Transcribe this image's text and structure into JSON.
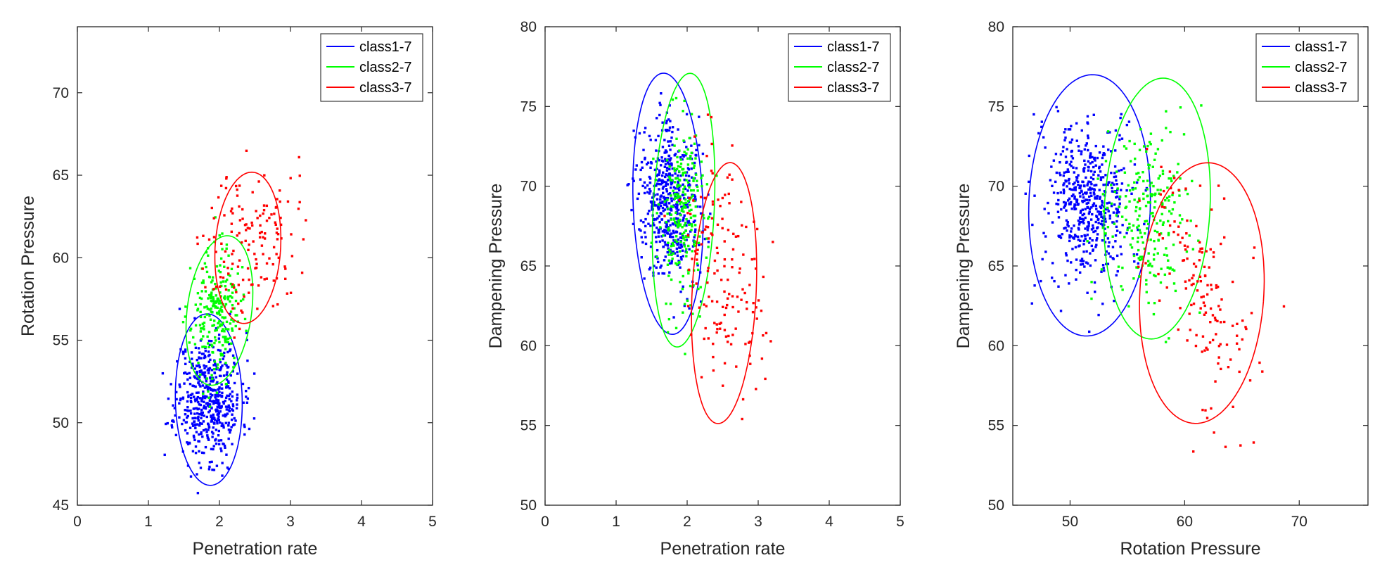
{
  "colors": {
    "class1": "#0000ff",
    "class2": "#00ff00",
    "class3": "#ff0000",
    "axis": "#262626"
  },
  "chart_data": [
    {
      "type": "scatter",
      "xlabel": "Penetration rate",
      "ylabel": "Rotation Pressure",
      "xlim": [
        0,
        5
      ],
      "ylim": [
        45,
        74
      ],
      "xticks": [
        0,
        1,
        2,
        3,
        4,
        5
      ],
      "yticks": [
        45,
        50,
        55,
        60,
        65,
        70
      ],
      "legend_position": "top-right",
      "series": [
        {
          "name": "class1-7",
          "color": "class1",
          "center": [
            1.85,
            51.5
          ],
          "spread": [
            0.23,
            1.9
          ],
          "slope": 0.3,
          "count": 520,
          "seed": 11,
          "ellipse": {
            "cx": 1.85,
            "cy": 51.4,
            "rx": 0.47,
            "ry": 5.2,
            "rotation_deg": 2
          }
        },
        {
          "name": "class2-7",
          "color": "class2",
          "center": [
            1.95,
            56.6
          ],
          "spread": [
            0.17,
            1.9
          ],
          "slope": 0.0,
          "count": 240,
          "seed": 23,
          "ellipse": {
            "cx": 2.0,
            "cy": 56.8,
            "rx": 0.45,
            "ry": 4.6,
            "rotation_deg": -12
          }
        },
        {
          "name": "class3-7",
          "color": "class3",
          "center": [
            2.45,
            61.0
          ],
          "spread": [
            0.32,
            2.3
          ],
          "slope": 1.5,
          "count": 150,
          "seed": 37,
          "ellipse": {
            "cx": 2.4,
            "cy": 60.6,
            "rx": 0.46,
            "ry": 4.6,
            "rotation_deg": -6
          }
        }
      ]
    },
    {
      "type": "scatter",
      "xlabel": "Penetration rate",
      "ylabel": "Dampening Pressure",
      "xlim": [
        0,
        5
      ],
      "ylim": [
        50,
        80
      ],
      "xticks": [
        0,
        1,
        2,
        3,
        4,
        5
      ],
      "yticks": [
        50,
        55,
        60,
        65,
        70,
        75,
        80
      ],
      "legend_position": "top-right",
      "series": [
        {
          "name": "class1-7",
          "color": "class1",
          "center": [
            1.75,
            69.0
          ],
          "spread": [
            0.22,
            2.5
          ],
          "slope": -1.0,
          "count": 520,
          "seed": 41,
          "ellipse": {
            "cx": 1.73,
            "cy": 68.9,
            "rx": 0.49,
            "ry": 8.2,
            "rotation_deg": 3
          }
        },
        {
          "name": "class2-7",
          "color": "class2",
          "center": [
            1.95,
            68.0
          ],
          "spread": [
            0.17,
            3.0
          ],
          "slope": 0.0,
          "count": 240,
          "seed": 53,
          "ellipse": {
            "cx": 1.95,
            "cy": 68.5,
            "rx": 0.43,
            "ry": 8.6,
            "rotation_deg": -4
          }
        },
        {
          "name": "class3-7",
          "color": "class3",
          "center": [
            2.5,
            64.0
          ],
          "spread": [
            0.28,
            3.6
          ],
          "slope": -4.5,
          "count": 150,
          "seed": 67,
          "ellipse": {
            "cx": 2.52,
            "cy": 63.3,
            "rx": 0.45,
            "ry": 8.2,
            "rotation_deg": -4
          }
        }
      ]
    },
    {
      "type": "scatter",
      "xlabel": "Rotation Pressure",
      "ylabel": "Dampening Pressure",
      "xlim": [
        45,
        76
      ],
      "ylim": [
        50,
        80
      ],
      "xticks": [
        50,
        60,
        70
      ],
      "yticks": [
        50,
        55,
        60,
        65,
        70,
        75,
        80
      ],
      "legend_position": "top-right",
      "series": [
        {
          "name": "class1-7",
          "color": "class1",
          "center": [
            51.5,
            68.8
          ],
          "spread": [
            1.9,
            2.5
          ],
          "slope": -0.1,
          "count": 520,
          "seed": 71,
          "ellipse": {
            "cx": 51.7,
            "cy": 68.8,
            "rx": 5.3,
            "ry": 8.2,
            "rotation_deg": -3
          }
        },
        {
          "name": "class2-7",
          "color": "class2",
          "center": [
            56.8,
            68.0
          ],
          "spread": [
            1.9,
            2.8
          ],
          "slope": 0.0,
          "count": 240,
          "seed": 83,
          "ellipse": {
            "cx": 57.6,
            "cy": 68.6,
            "rx": 4.6,
            "ry": 8.2,
            "rotation_deg": -5
          }
        },
        {
          "name": "class3-7",
          "color": "class3",
          "center": [
            61.0,
            63.8
          ],
          "spread": [
            2.5,
            3.6
          ],
          "slope": -0.8,
          "count": 150,
          "seed": 97,
          "ellipse": {
            "cx": 61.5,
            "cy": 63.3,
            "rx": 5.4,
            "ry": 8.2,
            "rotation_deg": -6
          }
        }
      ]
    }
  ]
}
